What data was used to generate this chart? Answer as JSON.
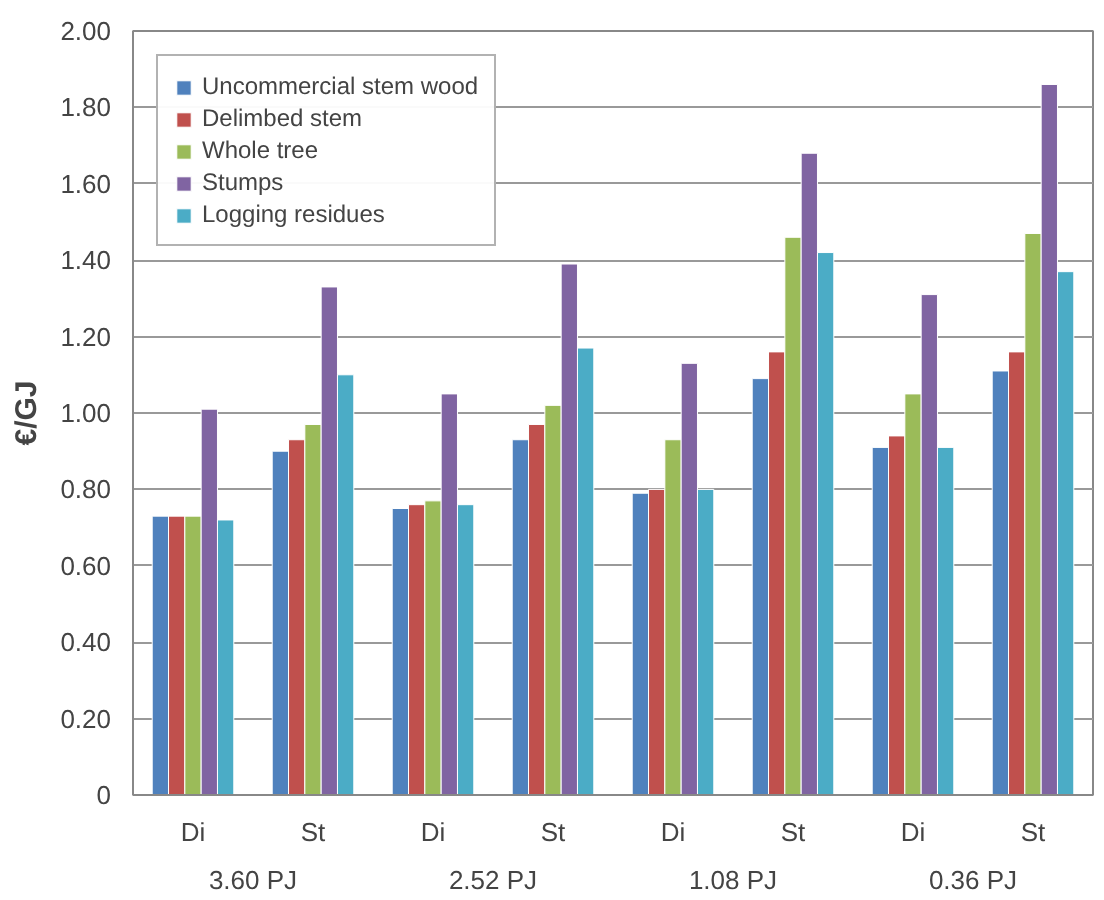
{
  "chart_data": {
    "type": "bar",
    "ylabel": "€/GJ",
    "categories": [
      "Di",
      "St",
      "Di",
      "St",
      "Di",
      "St",
      "Di",
      "St"
    ],
    "annotations": [
      "3.60 PJ",
      "2.52 PJ",
      "1.08 PJ",
      "0.36 PJ"
    ],
    "series": [
      {
        "name": "Uncommercial stem wood",
        "color": "#4f81bd",
        "values": [
          0.73,
          0.9,
          0.75,
          0.93,
          0.79,
          1.09,
          0.91,
          1.11
        ]
      },
      {
        "name": "Delimbed stem",
        "color": "#c0504d",
        "values": [
          0.73,
          0.93,
          0.76,
          0.97,
          0.8,
          1.16,
          0.94,
          1.16
        ]
      },
      {
        "name": "Whole tree",
        "color": "#9bbb59",
        "values": [
          0.73,
          0.97,
          0.77,
          1.02,
          0.93,
          1.46,
          1.05,
          1.47
        ]
      },
      {
        "name": "Stumps",
        "color": "#8064a2",
        "values": [
          1.01,
          1.33,
          1.05,
          1.39,
          1.13,
          1.68,
          1.31,
          1.86
        ]
      },
      {
        "name": "Logging residues",
        "color": "#4bacc6",
        "values": [
          0.72,
          1.1,
          0.76,
          1.17,
          0.8,
          1.42,
          0.91,
          1.37
        ]
      }
    ],
    "ylim": [
      0,
      2.0
    ],
    "yticks": [
      0,
      {
        "value": 0.2,
        "label": "0.20"
      },
      {
        "value": 0.4,
        "label": "0.40"
      },
      {
        "value": 0.6,
        "label": "0.60"
      },
      {
        "value": 0.8,
        "label": "0.80"
      },
      {
        "value": 1.0,
        "label": "1.00"
      },
      {
        "value": 1.2,
        "label": "1.20"
      },
      {
        "value": 1.4,
        "label": "1.40"
      },
      {
        "value": 1.6,
        "label": "1.60"
      },
      {
        "value": 1.8,
        "label": "1.80"
      },
      {
        "value": 2.0,
        "label": "2.00"
      }
    ],
    "grid": "y",
    "legend": "top left"
  }
}
